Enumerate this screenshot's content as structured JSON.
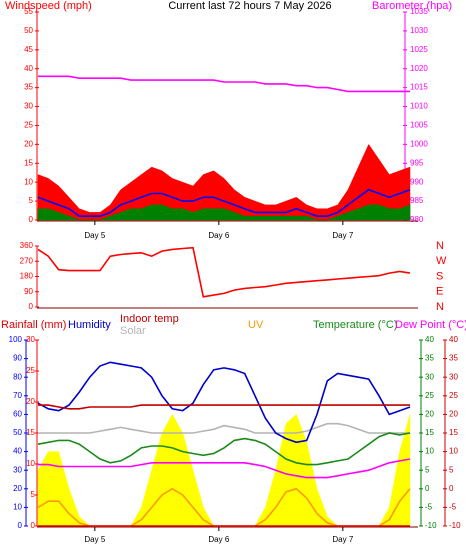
{
  "chart_data": [
    {
      "type": "line",
      "title": "Current last 72 hours 7 May 2026",
      "ylabel": "Windspeed (mph)",
      "y2label": "Barometer (hpa)",
      "x": [
        0,
        2,
        4,
        6,
        8,
        10,
        12,
        14,
        16,
        18,
        20,
        22,
        24,
        26,
        28,
        30,
        32,
        34,
        36,
        38,
        40,
        42,
        44,
        46,
        48,
        50,
        52,
        54,
        56,
        58,
        60,
        62,
        64,
        66,
        68,
        70,
        72
      ],
      "xlim": [
        0,
        72
      ],
      "xticks": [
        {
          "value": 11,
          "label": "Day 5"
        },
        {
          "value": 35,
          "label": "Day 6"
        },
        {
          "value": 59,
          "label": "Day 7"
        }
      ],
      "ylim": [
        0,
        55
      ],
      "yticks": [
        0,
        5,
        10,
        15,
        20,
        25,
        30,
        35,
        40,
        45,
        50,
        55
      ],
      "ycolor": "#ff0000",
      "y2lim": [
        980,
        1035
      ],
      "y2ticks": [
        980,
        985,
        990,
        995,
        1000,
        1005,
        1010,
        1015,
        1020,
        1025,
        1030,
        1035
      ],
      "y2color": "#ff00ff",
      "series": [
        {
          "color": "#ff0000",
          "fill": true,
          "values": [
            12,
            11,
            9,
            6,
            3,
            2,
            2,
            4,
            8,
            10,
            12,
            14,
            13,
            11,
            10,
            9,
            12,
            13,
            11,
            8,
            6,
            5,
            4,
            4,
            5,
            6,
            4,
            3,
            3,
            4,
            8,
            14,
            20,
            16,
            12,
            13,
            14
          ]
        },
        {
          "color": "#0000ff",
          "values": [
            6,
            5,
            4,
            3,
            1,
            1,
            1,
            2,
            4,
            5,
            6,
            7,
            7,
            6,
            5,
            5,
            6,
            6,
            5,
            4,
            3,
            2,
            2,
            2,
            2,
            3,
            2,
            1,
            1,
            2,
            4,
            6,
            8,
            7,
            6,
            7,
            8
          ]
        },
        {
          "color": "#008000",
          "fill": true,
          "values": [
            3,
            3,
            2,
            1,
            0,
            0,
            0,
            1,
            2,
            3,
            3,
            4,
            4,
            3,
            3,
            2,
            3,
            3,
            3,
            2,
            1,
            1,
            1,
            1,
            1,
            1,
            1,
            0,
            0,
            1,
            2,
            3,
            4,
            4,
            3,
            3,
            4
          ]
        },
        {
          "color": "#ff00ff",
          "axis": "y2",
          "values": [
            1018,
            1018,
            1018,
            1018,
            1017.5,
            1017.5,
            1017.5,
            1017.5,
            1017.5,
            1017,
            1017,
            1017,
            1017,
            1017,
            1017,
            1017,
            1017,
            1017,
            1016.5,
            1016.5,
            1016.5,
            1016.5,
            1016,
            1016,
            1016,
            1015.5,
            1015.5,
            1015,
            1015,
            1014.5,
            1014,
            1014,
            1014,
            1014,
            1014,
            1014,
            1014
          ]
        }
      ]
    },
    {
      "type": "line",
      "x": [
        0,
        2,
        4,
        6,
        8,
        10,
        12,
        14,
        16,
        18,
        20,
        22,
        24,
        26,
        28,
        30,
        32,
        34,
        36,
        38,
        40,
        42,
        44,
        46,
        48,
        50,
        52,
        54,
        56,
        58,
        60,
        62,
        64,
        66,
        68,
        70,
        72
      ],
      "xlim": [
        0,
        72
      ],
      "ylim": [
        0,
        360
      ],
      "yticks": [
        0,
        90,
        180,
        270,
        360
      ],
      "ycolor": "#ff0000",
      "y2lim": [
        0,
        360
      ],
      "y2ticks": [
        {
          "value": 0,
          "label": "N"
        },
        {
          "value": 90,
          "label": "E"
        },
        {
          "value": 180,
          "label": "S"
        },
        {
          "value": 270,
          "label": "W"
        },
        {
          "value": 360,
          "label": "N"
        }
      ],
      "y2color": "#ff0000",
      "series": [
        {
          "color": "#ff0000",
          "values": [
            340,
            300,
            220,
            215,
            215,
            215,
            215,
            300,
            310,
            315,
            320,
            300,
            330,
            340,
            345,
            350,
            60,
            70,
            80,
            100,
            110,
            115,
            120,
            130,
            140,
            145,
            150,
            155,
            160,
            165,
            170,
            175,
            180,
            185,
            200,
            210,
            200
          ]
        }
      ]
    },
    {
      "type": "line",
      "x": [
        0,
        2,
        4,
        6,
        8,
        10,
        12,
        14,
        16,
        18,
        20,
        22,
        24,
        26,
        28,
        30,
        32,
        34,
        36,
        38,
        40,
        42,
        44,
        46,
        48,
        50,
        52,
        54,
        56,
        58,
        60,
        62,
        64,
        66,
        68,
        70,
        72
      ],
      "xlim": [
        0,
        72
      ],
      "xticks": [
        {
          "value": 11,
          "label": "Day 5"
        },
        {
          "value": 35,
          "label": "Day 6"
        },
        {
          "value": 59,
          "label": "Day 7"
        }
      ],
      "ylim": [
        0,
        100
      ],
      "yticks": [
        0,
        10,
        20,
        30,
        40,
        50,
        60,
        70,
        80,
        90,
        100
      ],
      "ycolor": "#0000ff",
      "y3lim": [
        0,
        30
      ],
      "y3ticks": [
        0,
        5,
        10,
        15,
        20,
        25,
        30
      ],
      "y3color": "#ff0000",
      "y2lim": [
        -10,
        40
      ],
      "y2ticks": [
        -10,
        -5,
        0,
        5,
        10,
        15,
        20,
        25,
        30,
        35,
        40
      ],
      "y2color": "#008000",
      "y4lim": [
        -10,
        40
      ],
      "y4ticks": [
        -10,
        -5,
        0,
        5,
        10,
        15,
        20,
        25,
        30,
        35,
        40
      ],
      "y4color": "#cc0000",
      "series": [
        {
          "color": "#ffff00",
          "fill": true,
          "values": [
            30,
            40,
            40,
            20,
            5,
            0,
            0,
            0,
            0,
            0,
            10,
            30,
            50,
            60,
            50,
            30,
            10,
            0,
            0,
            0,
            0,
            0,
            10,
            30,
            55,
            60,
            45,
            20,
            5,
            0,
            0,
            0,
            0,
            0,
            10,
            40,
            60
          ]
        },
        {
          "name": "Solar",
          "color": "#b4b4b4",
          "values": [
            50,
            50,
            50,
            50,
            50,
            50,
            51,
            52,
            53,
            52,
            51,
            50,
            50,
            50,
            50,
            50,
            51,
            52,
            54,
            53,
            52,
            50,
            50,
            50,
            50,
            50,
            51,
            53,
            55,
            55,
            54,
            52,
            50,
            50,
            50,
            50,
            50
          ]
        },
        {
          "name": "UV",
          "color": "#ff9900",
          "axis": "y3",
          "values": [
            3,
            4,
            4,
            2,
            0.5,
            0,
            0,
            0,
            0,
            0,
            1,
            3,
            5,
            6,
            5,
            3,
            1,
            0,
            0,
            0,
            0,
            0,
            1,
            3,
            5.5,
            6,
            4.5,
            2,
            0.5,
            0,
            0,
            0,
            0,
            0,
            1,
            4,
            6
          ]
        },
        {
          "name": "Rainfall (mm)",
          "color": "#e00000",
          "axis": "y3",
          "values": [
            0,
            0,
            0,
            0,
            0,
            0,
            0,
            0,
            0,
            0,
            0,
            0,
            0,
            0,
            0,
            0,
            0,
            0,
            0,
            0,
            0,
            0,
            0,
            0,
            0,
            0,
            0,
            0,
            0,
            0,
            0,
            0,
            0,
            0,
            0,
            0,
            0
          ]
        },
        {
          "name": "Humidity",
          "color": "#0000cc",
          "values": [
            66,
            63,
            62,
            65,
            72,
            80,
            86,
            88,
            87,
            86,
            85,
            80,
            70,
            63,
            62,
            66,
            76,
            84,
            85,
            84,
            82,
            70,
            58,
            50,
            47,
            45,
            46,
            60,
            78,
            82,
            81,
            80,
            79,
            70,
            60,
            62,
            64
          ]
        },
        {
          "name": "Temperature (°C)",
          "color": "#1a8a1a",
          "axis": "y2",
          "values": [
            12,
            12.5,
            13,
            13,
            12,
            10,
            8,
            7,
            7.5,
            9,
            11,
            11.5,
            11.5,
            11,
            10,
            9.5,
            9,
            9.5,
            11,
            13,
            13.5,
            13,
            12,
            10,
            8,
            7,
            6.5,
            6.5,
            7,
            7.5,
            8,
            10,
            12,
            14,
            15,
            14.5,
            15
          ]
        },
        {
          "name": "Dew Point (°C)",
          "color": "#ff00ff",
          "axis": "y2",
          "values": [
            6.5,
            6.5,
            6,
            6,
            6,
            6,
            6,
            6,
            6,
            6,
            6.5,
            7,
            7,
            7,
            7,
            7,
            7,
            7,
            7,
            7,
            7,
            6.5,
            6,
            5,
            4,
            3.5,
            3,
            3,
            3,
            3.5,
            4,
            4.5,
            5,
            6,
            7,
            7.5,
            8
          ]
        },
        {
          "name": "Indoor temp",
          "color": "#c00000",
          "axis": "y4",
          "values": [
            22.5,
            22.5,
            22,
            21.5,
            21.5,
            22,
            22,
            22,
            22,
            22,
            22.5,
            22.5,
            22.5,
            22.5,
            22.5,
            22.5,
            22.5,
            22.5,
            22.5,
            22.5,
            22.5,
            22.5,
            22.5,
            22.5,
            22.5,
            22.5,
            22.5,
            22.5,
            22.5,
            22.5,
            22.5,
            22.5,
            22.5,
            22.5,
            22.5,
            22.5,
            22.5
          ]
        }
      ]
    }
  ]
}
